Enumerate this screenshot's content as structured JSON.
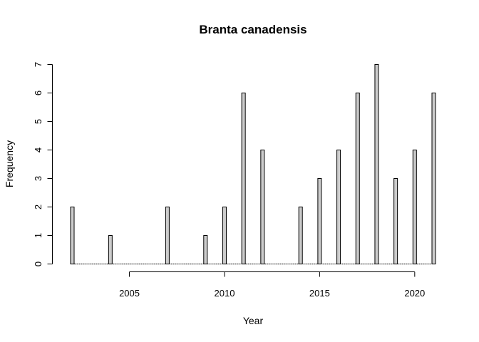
{
  "chart_data": {
    "type": "bar",
    "title": "Branta canadensis",
    "xlabel": "Year",
    "ylabel": "Frequency",
    "x": [
      2002,
      2003,
      2004,
      2005,
      2006,
      2007,
      2008,
      2009,
      2010,
      2011,
      2012,
      2013,
      2014,
      2015,
      2016,
      2017,
      2018,
      2019,
      2020,
      2021
    ],
    "values": [
      2,
      0,
      1,
      0,
      0,
      2,
      0,
      1,
      2,
      6,
      4,
      0,
      2,
      3,
      4,
      6,
      7,
      3,
      4,
      6
    ],
    "xticks": [
      "2005",
      "2010",
      "2015",
      "2020"
    ],
    "yticks": [
      "0",
      "1",
      "2",
      "3",
      "4",
      "5",
      "6",
      "7"
    ],
    "ylim": [
      0,
      7
    ],
    "xlim": [
      2002,
      2021
    ],
    "bar_fill": "#cccccc",
    "bar_stroke": "#000000",
    "grid": false
  }
}
